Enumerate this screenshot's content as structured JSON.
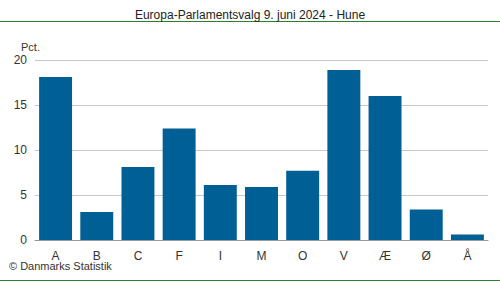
{
  "chart_data": {
    "type": "bar",
    "title": "Europa-Parlamentsvalg 9. juni 2024 - Hune",
    "ylabel": "Pct.",
    "source": "© Danmarks Statistik",
    "categories": [
      "A",
      "B",
      "C",
      "F",
      "I",
      "M",
      "O",
      "V",
      "Æ",
      "Ø",
      "Å"
    ],
    "values": [
      18.1,
      3.1,
      8.1,
      12.4,
      6.1,
      5.9,
      7.7,
      18.9,
      16.0,
      3.4,
      0.6
    ],
    "color": "#005f94",
    "ylim": [
      0,
      20
    ],
    "yticks": [
      0,
      5,
      10,
      15,
      20
    ],
    "grid": true
  }
}
